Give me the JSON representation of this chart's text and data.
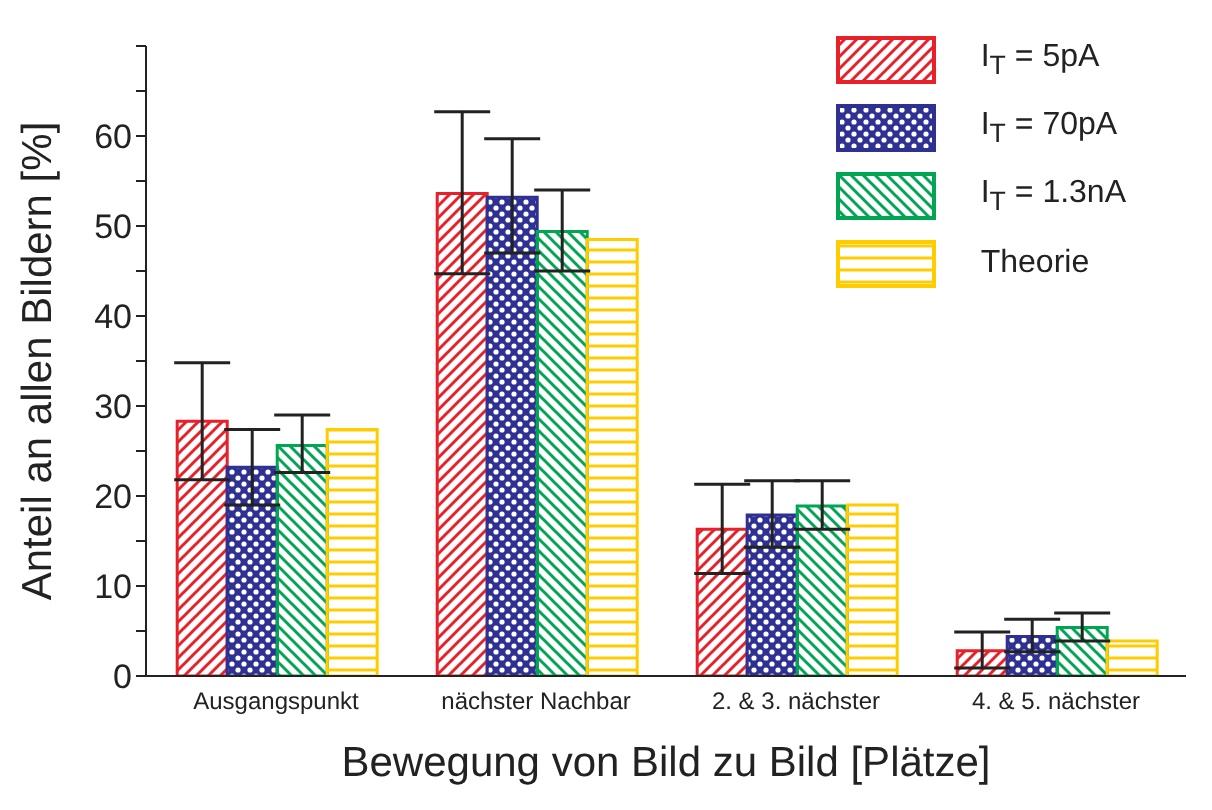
{
  "chart_data": {
    "type": "bar",
    "xlabel": "Bewegung von Bild zu Bild [Plätze]",
    "ylabel": "Anteil an allen Bildern [%]",
    "categories": [
      "Ausgangspunkt",
      "nächster Nachbar",
      "2. & 3. nächster",
      "4. & 5. nächster"
    ],
    "series": [
      {
        "name": "I$_{T}$ = 5pA",
        "color": "#e8202a",
        "values": [
          28.3,
          53.6,
          16.3,
          2.8
        ],
        "errors": [
          [
            21.8,
            34.8
          ],
          [
            44.7,
            62.7
          ],
          [
            11.4,
            21.3
          ],
          [
            0.9,
            4.9
          ]
        ]
      },
      {
        "name": "I$_{T}$ = 70pA",
        "color": "#2e3192",
        "values": [
          23.2,
          53.2,
          17.9,
          4.4
        ],
        "errors": [
          [
            19.0,
            27.4
          ],
          [
            47.0,
            59.7
          ],
          [
            14.3,
            21.7
          ],
          [
            2.7,
            6.3
          ]
        ]
      },
      {
        "name": "I$_{T}$ = 1.3nA",
        "color": "#00a651",
        "values": [
          25.6,
          49.4,
          18.9,
          5.4
        ],
        "errors": [
          [
            22.6,
            29.0
          ],
          [
            45.0,
            54.0
          ],
          [
            16.3,
            21.7
          ],
          [
            3.9,
            7.0
          ]
        ]
      },
      {
        "name": "Theorie",
        "color": "#ffcc00",
        "values": [
          27.4,
          48.5,
          19.0,
          3.9
        ]
      }
    ],
    "ylim": [
      0,
      70
    ],
    "yticks": [
      0,
      {
        "value": 5,
        "label": null
      },
      10,
      {
        "value": 15,
        "label": null
      },
      20,
      {
        "value": 25,
        "label": null
      },
      30,
      {
        "value": 35,
        "label": null
      },
      40,
      {
        "value": 45,
        "label": null
      },
      50,
      {
        "value": 55,
        "label": null
      },
      60,
      {
        "value": 65,
        "label": null
      },
      {
        "value": 70,
        "label": null
      }
    ],
    "grid": false,
    "legend": "top right"
  }
}
